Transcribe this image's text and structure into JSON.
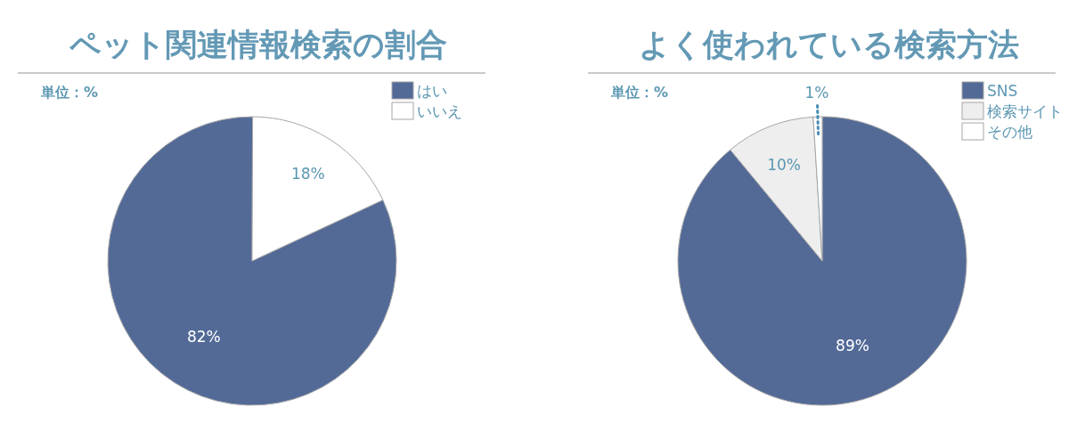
{
  "chart_data": [
    {
      "type": "pie",
      "title": "ペット関連情報検索の割合",
      "categories": [
        "はい",
        "いいえ"
      ],
      "values": [
        82,
        18
      ],
      "colors": [
        "#536a97",
        "#ffffff"
      ],
      "value_labels": [
        "82%",
        "18%"
      ],
      "legend": "top right",
      "annotations": [
        "単位：%"
      ]
    },
    {
      "type": "pie",
      "title": "よく使われている検索方法",
      "categories": [
        "SNS",
        "検索サイト",
        "その他"
      ],
      "values": [
        89,
        10,
        1
      ],
      "colors": [
        "#536a97",
        "#eeeeee",
        "#ffffff"
      ],
      "value_labels": [
        "89%",
        "10%",
        "1%"
      ],
      "legend": "top right",
      "annotations": [
        "単位：%"
      ]
    }
  ]
}
